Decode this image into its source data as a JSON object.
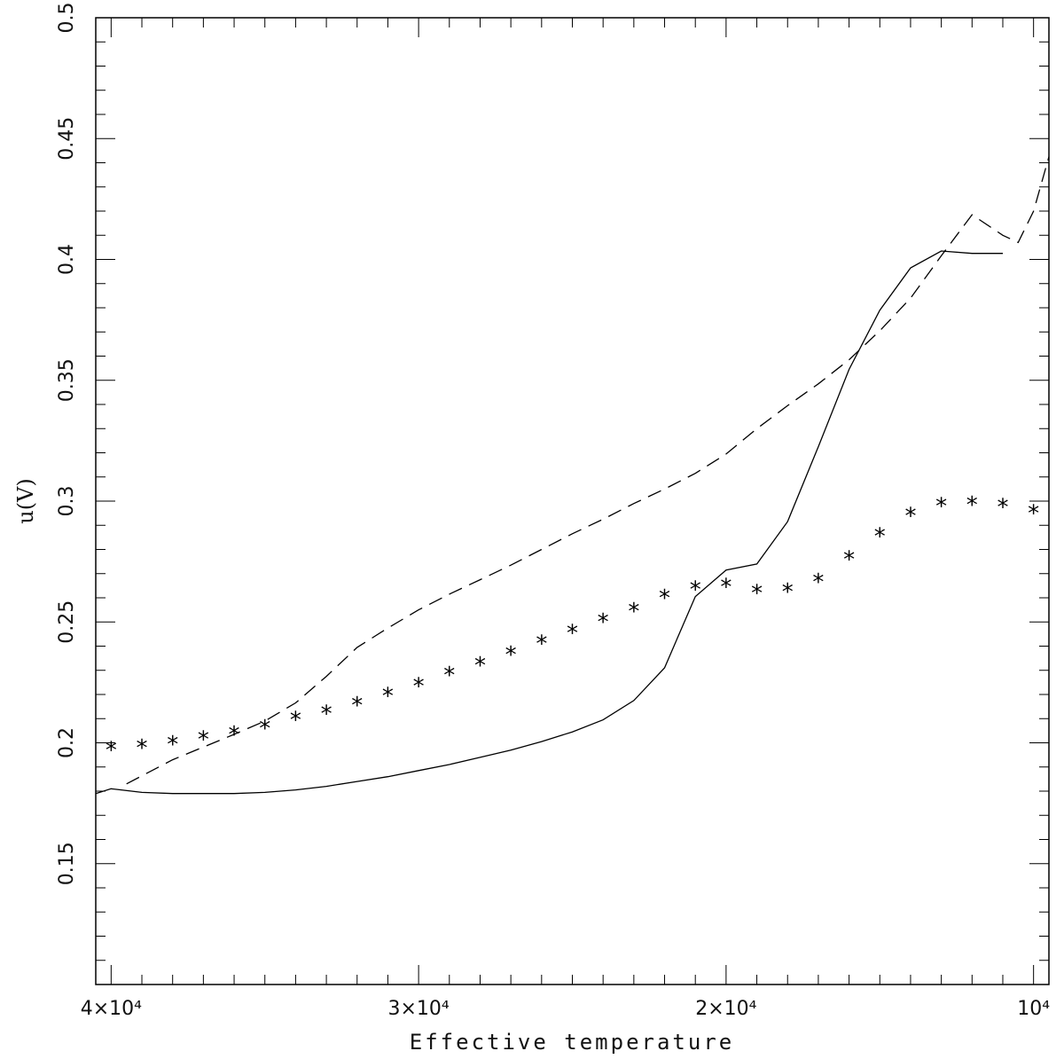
{
  "chart_data": {
    "type": "line",
    "xlabel": "Effective temperature",
    "ylabel": "u(V)",
    "xlim": [
      40500,
      9500
    ],
    "ylim": [
      0.1,
      0.5
    ],
    "x_reversed": true,
    "grid": false,
    "legend": "none",
    "x_tick_labels": [
      {
        "value": 40000,
        "label": "4×10⁴"
      },
      {
        "value": 30000,
        "label": "3×10⁴"
      },
      {
        "value": 20000,
        "label": "2×10⁴"
      },
      {
        "value": 10000,
        "label": "10⁴"
      }
    ],
    "y_tick_labels": [
      "0.15",
      "0.2",
      "0.25",
      "0.3",
      "0.35",
      "0.4",
      "0.45",
      "0.5"
    ],
    "series": [
      {
        "style": "solid",
        "color": "#000000",
        "x": [
          40500,
          40000,
          39000,
          38000,
          37000,
          36000,
          35000,
          34000,
          33000,
          32000,
          31000,
          30000,
          29000,
          28000,
          27000,
          26000,
          25000,
          24000,
          23000,
          22000,
          21000,
          20000,
          19000,
          18000,
          17000,
          16000,
          15000,
          14000,
          13000,
          12000,
          11000
        ],
        "y": [
          0.179,
          0.181,
          0.1795,
          0.179,
          0.179,
          0.179,
          0.1795,
          0.1805,
          0.182,
          0.184,
          0.186,
          0.1885,
          0.191,
          0.194,
          0.197,
          0.2005,
          0.2045,
          0.2095,
          0.2175,
          0.231,
          0.2605,
          0.2715,
          0.274,
          0.2915,
          0.3225,
          0.3545,
          0.379,
          0.3965,
          0.4035,
          0.4025,
          0.4025
        ]
      },
      {
        "style": "dashed",
        "color": "#000000",
        "x": [
          39500,
          38000,
          36000,
          35000,
          34000,
          33000,
          32000,
          31000,
          30000,
          29000,
          28000,
          27000,
          26000,
          25000,
          24000,
          23000,
          22000,
          21000,
          20000,
          19000,
          18000,
          17000,
          16000,
          15000,
          14000,
          13000,
          12000,
          11000,
          10500,
          10000,
          9500
        ],
        "y": [
          0.183,
          0.193,
          0.2035,
          0.209,
          0.2165,
          0.2275,
          0.2395,
          0.2475,
          0.255,
          0.2615,
          0.2675,
          0.2735,
          0.28,
          0.2865,
          0.2925,
          0.299,
          0.305,
          0.3115,
          0.3195,
          0.33,
          0.3395,
          0.3485,
          0.3585,
          0.3705,
          0.384,
          0.4015,
          0.4185,
          0.41,
          0.407,
          0.42,
          0.4425
        ]
      },
      {
        "style": "markers",
        "marker": "*",
        "color": "#000000",
        "x": [
          40000,
          39000,
          38000,
          37000,
          36000,
          35000,
          34000,
          33000,
          32000,
          31000,
          30000,
          29000,
          28000,
          27000,
          26000,
          25000,
          24000,
          23000,
          22000,
          21000,
          20000,
          19000,
          18000,
          17000,
          16000,
          15000,
          14000,
          13000,
          12000,
          11000,
          10000
        ],
        "y": [
          0.1985,
          0.1995,
          0.201,
          0.203,
          0.205,
          0.2075,
          0.211,
          0.2135,
          0.217,
          0.221,
          0.225,
          0.2295,
          0.2335,
          0.238,
          0.2425,
          0.247,
          0.2515,
          0.256,
          0.2615,
          0.265,
          0.266,
          0.2635,
          0.264,
          0.268,
          0.2775,
          0.287,
          0.2955,
          0.2995,
          0.3,
          0.299,
          0.2965
        ]
      }
    ]
  }
}
